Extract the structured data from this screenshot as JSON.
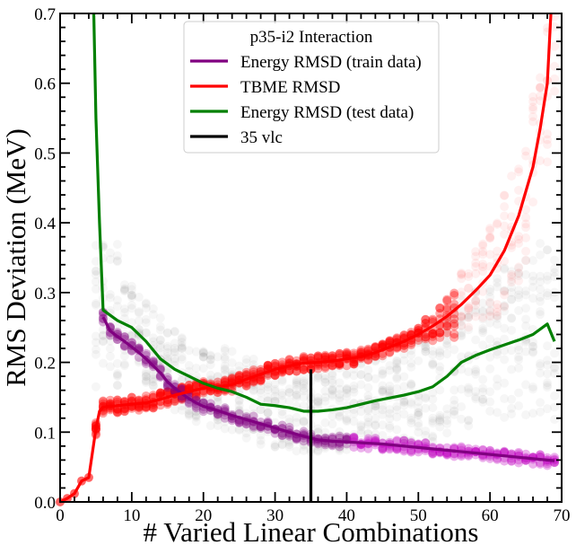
{
  "chart_data": {
    "type": "line",
    "title": "",
    "xlabel": "# Varied Linear Combinations",
    "ylabel": "RMS Deviation (MeV)",
    "xlim": [
      0,
      70
    ],
    "ylim": [
      0,
      0.7
    ],
    "xticks": [
      "0",
      "10",
      "20",
      "30",
      "40",
      "50",
      "60",
      "70"
    ],
    "yticks": [
      "0.0",
      "0.1",
      "0.2",
      "0.3",
      "0.4",
      "0.5",
      "0.6",
      "0.7"
    ],
    "legend": {
      "title": "p35-i2 Interaction",
      "position": "top-center",
      "entries": [
        {
          "label": "Energy RMSD (train data)",
          "color": "#800080"
        },
        {
          "label": "TBME RMSD",
          "color": "#ff0000"
        },
        {
          "label": "Energy RMSD (test data)",
          "color": "#008000"
        },
        {
          "label": "35 vlc",
          "color": "#000000"
        }
      ]
    },
    "series": [
      {
        "name": "Energy RMSD (train data)",
        "color": "#800080",
        "x": [
          6,
          7,
          8,
          9,
          10,
          11,
          12,
          13,
          14,
          15,
          16,
          17,
          18,
          19,
          20,
          22,
          24,
          26,
          28,
          30,
          32,
          34,
          36,
          38,
          40,
          45,
          50,
          55,
          60,
          65,
          69
        ],
        "y": [
          0.265,
          0.245,
          0.237,
          0.23,
          0.222,
          0.214,
          0.205,
          0.195,
          0.185,
          0.172,
          0.163,
          0.155,
          0.148,
          0.142,
          0.137,
          0.131,
          0.124,
          0.118,
          0.112,
          0.106,
          0.1,
          0.094,
          0.089,
          0.087,
          0.086,
          0.083,
          0.078,
          0.073,
          0.068,
          0.063,
          0.059
        ]
      },
      {
        "name": "TBME RMSD",
        "color": "#ff0000",
        "x": [
          0,
          1,
          2,
          3,
          4,
          5,
          5.5,
          6,
          7,
          8,
          10,
          12,
          14,
          16,
          18,
          20,
          22,
          24,
          26,
          28,
          30,
          32,
          34,
          36,
          38,
          40,
          42,
          44,
          46,
          48,
          50,
          52,
          54,
          56,
          58,
          60,
          62,
          64,
          66,
          67,
          68,
          68.5
        ],
        "y": [
          0.0,
          0.005,
          0.012,
          0.03,
          0.035,
          0.105,
          0.13,
          0.136,
          0.137,
          0.138,
          0.14,
          0.142,
          0.147,
          0.153,
          0.158,
          0.163,
          0.165,
          0.168,
          0.176,
          0.183,
          0.19,
          0.195,
          0.199,
          0.2,
          0.202,
          0.205,
          0.208,
          0.214,
          0.222,
          0.23,
          0.24,
          0.252,
          0.266,
          0.283,
          0.303,
          0.325,
          0.36,
          0.41,
          0.48,
          0.535,
          0.6,
          0.7
        ]
      },
      {
        "name": "Energy RMSD (test data)",
        "color": "#008000",
        "x": [
          4.7,
          5,
          5.5,
          6,
          8,
          10,
          12,
          14,
          16,
          18,
          20,
          22,
          24,
          26,
          28,
          30,
          32,
          34,
          36,
          38,
          40,
          42,
          44,
          46,
          48,
          50,
          52,
          54,
          56,
          58,
          60,
          62,
          64,
          66,
          68,
          69
        ],
        "y": [
          0.7,
          0.55,
          0.4,
          0.275,
          0.26,
          0.25,
          0.23,
          0.205,
          0.19,
          0.18,
          0.17,
          0.163,
          0.158,
          0.15,
          0.14,
          0.138,
          0.135,
          0.13,
          0.13,
          0.132,
          0.135,
          0.14,
          0.145,
          0.149,
          0.153,
          0.158,
          0.165,
          0.18,
          0.2,
          0.21,
          0.218,
          0.225,
          0.232,
          0.24,
          0.255,
          0.23
        ]
      },
      {
        "name": "35 vlc",
        "color": "#000000",
        "x": [
          35,
          35
        ],
        "y": [
          0,
          0.19
        ]
      }
    ],
    "scatter_cloud": {
      "description_series": [
        "train",
        "test",
        "tbme"
      ],
      "x_start": 5,
      "x_end": 69
    }
  }
}
